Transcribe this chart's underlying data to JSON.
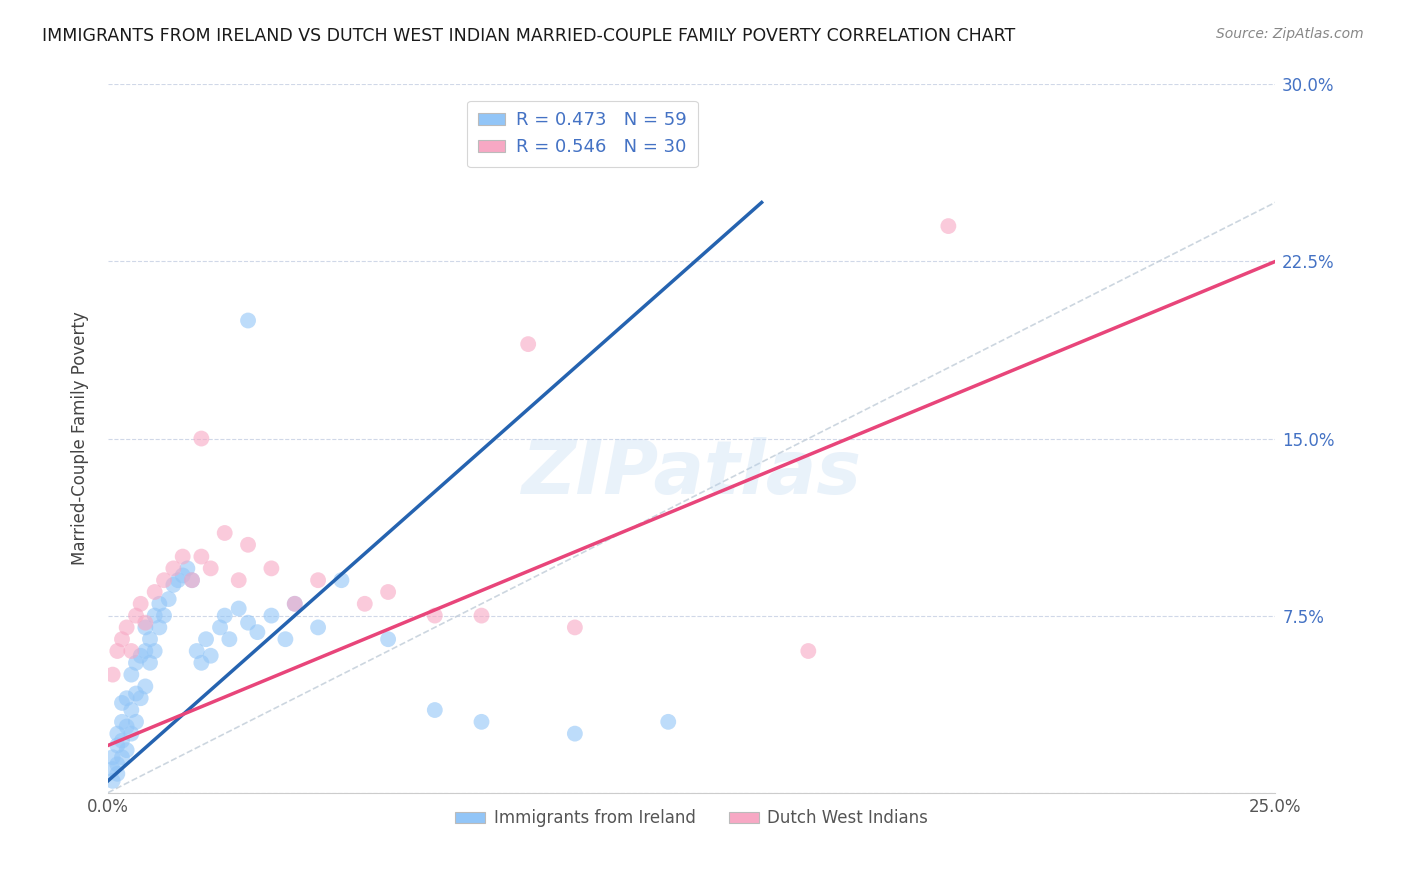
{
  "title": "IMMIGRANTS FROM IRELAND VS DUTCH WEST INDIAN MARRIED-COUPLE FAMILY POVERTY CORRELATION CHART",
  "source": "Source: ZipAtlas.com",
  "ylabel": "Married-Couple Family Poverty",
  "xlim": [
    0.0,
    0.25
  ],
  "ylim": [
    0.0,
    0.3
  ],
  "xticks": [
    0.0,
    0.05,
    0.1,
    0.15,
    0.2,
    0.25
  ],
  "yticks": [
    0.0,
    0.075,
    0.15,
    0.225,
    0.3
  ],
  "xticklabels": [
    "0.0%",
    "",
    "",
    "",
    "",
    "25.0%"
  ],
  "yticklabels_right": [
    "",
    "7.5%",
    "15.0%",
    "22.5%",
    "30.0%"
  ],
  "blue_R": 0.473,
  "blue_N": 59,
  "pink_R": 0.546,
  "pink_N": 30,
  "blue_color": "#92c5f7",
  "pink_color": "#f7a8c4",
  "blue_line_color": "#2563b0",
  "pink_line_color": "#e8457a",
  "diagonal_color": "#c0ccd8",
  "watermark": "ZIPatlas",
  "legend_label_blue": "Immigrants from Ireland",
  "legend_label_pink": "Dutch West Indians",
  "blue_line_x0": 0.0,
  "blue_line_y0": 0.005,
  "blue_line_x1": 0.14,
  "blue_line_y1": 0.25,
  "pink_line_x0": 0.0,
  "pink_line_y0": 0.02,
  "pink_line_x1": 0.25,
  "pink_line_y1": 0.225,
  "blue_scatter_x": [
    0.001,
    0.001,
    0.001,
    0.002,
    0.002,
    0.002,
    0.002,
    0.003,
    0.003,
    0.003,
    0.003,
    0.004,
    0.004,
    0.004,
    0.005,
    0.005,
    0.005,
    0.006,
    0.006,
    0.006,
    0.007,
    0.007,
    0.008,
    0.008,
    0.008,
    0.009,
    0.009,
    0.01,
    0.01,
    0.011,
    0.011,
    0.012,
    0.013,
    0.014,
    0.015,
    0.016,
    0.017,
    0.018,
    0.019,
    0.02,
    0.021,
    0.022,
    0.024,
    0.025,
    0.026,
    0.028,
    0.03,
    0.032,
    0.035,
    0.038,
    0.04,
    0.045,
    0.05,
    0.06,
    0.07,
    0.08,
    0.1,
    0.12,
    0.03
  ],
  "blue_scatter_y": [
    0.005,
    0.01,
    0.015,
    0.008,
    0.012,
    0.02,
    0.025,
    0.015,
    0.022,
    0.03,
    0.038,
    0.018,
    0.028,
    0.04,
    0.025,
    0.035,
    0.05,
    0.03,
    0.042,
    0.055,
    0.04,
    0.058,
    0.045,
    0.06,
    0.07,
    0.055,
    0.065,
    0.06,
    0.075,
    0.07,
    0.08,
    0.075,
    0.082,
    0.088,
    0.09,
    0.092,
    0.095,
    0.09,
    0.06,
    0.055,
    0.065,
    0.058,
    0.07,
    0.075,
    0.065,
    0.078,
    0.072,
    0.068,
    0.075,
    0.065,
    0.08,
    0.07,
    0.09,
    0.065,
    0.035,
    0.03,
    0.025,
    0.03,
    0.2
  ],
  "pink_scatter_x": [
    0.001,
    0.002,
    0.003,
    0.004,
    0.005,
    0.006,
    0.007,
    0.008,
    0.01,
    0.012,
    0.014,
    0.016,
    0.018,
    0.02,
    0.022,
    0.025,
    0.028,
    0.03,
    0.035,
    0.04,
    0.045,
    0.055,
    0.06,
    0.07,
    0.08,
    0.09,
    0.1,
    0.15,
    0.18,
    0.02
  ],
  "pink_scatter_y": [
    0.05,
    0.06,
    0.065,
    0.07,
    0.06,
    0.075,
    0.08,
    0.072,
    0.085,
    0.09,
    0.095,
    0.1,
    0.09,
    0.1,
    0.095,
    0.11,
    0.09,
    0.105,
    0.095,
    0.08,
    0.09,
    0.08,
    0.085,
    0.075,
    0.075,
    0.19,
    0.07,
    0.06,
    0.24,
    0.15
  ]
}
